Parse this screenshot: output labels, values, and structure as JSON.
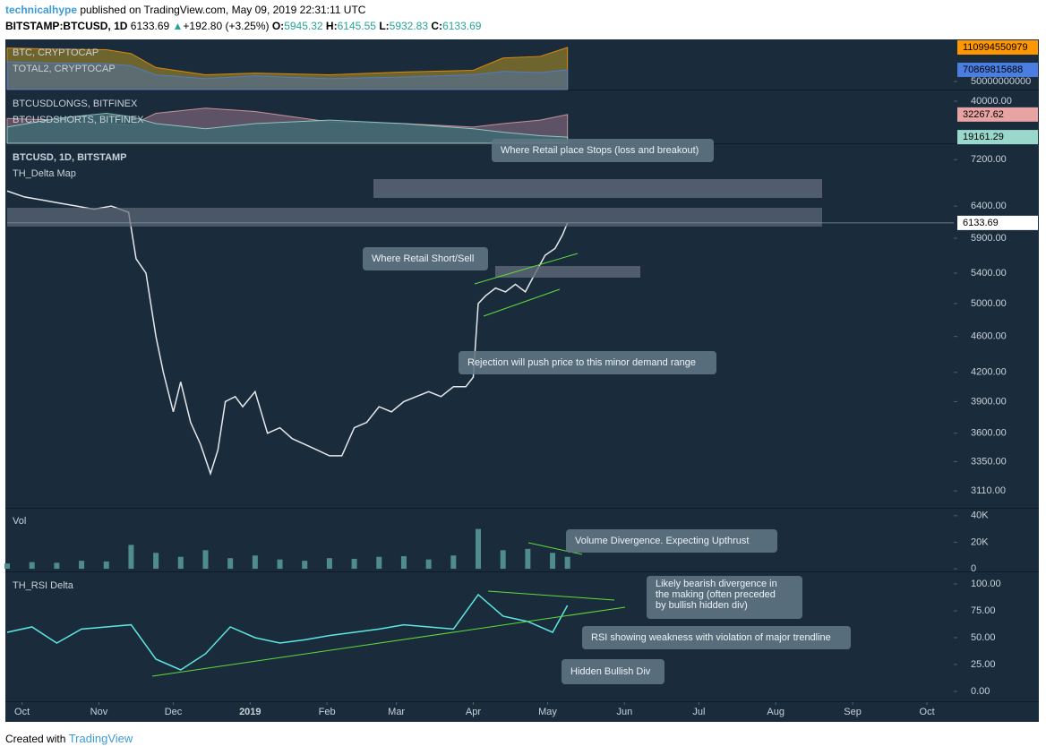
{
  "header": {
    "author": "technicalhype",
    "published": "published on TradingView.com, May 09, 2019 22:31:11 UTC",
    "symbol": "BITSTAMP:BTCUSD, 1D",
    "last": "6133.69",
    "arrow": "▲",
    "change": "+192.80 (+3.25%)",
    "open_label": "O:",
    "open": "5945.32",
    "high_label": "H:",
    "high": "6145.55",
    "low_label": "L:",
    "low": "5932.83",
    "close_label": "C:",
    "close": "6133.69"
  },
  "chart_data": [
    {
      "type": "area",
      "x": [
        0,
        20,
        40,
        50,
        60,
        80,
        100,
        130,
        160,
        188,
        200,
        215,
        226
      ],
      "ylim": [
        35500000000,
        123800000000
      ],
      "yticks": [
        50000000000
      ],
      "series": [
        {
          "name": "BTC, CRYPTOCAP",
          "color": "#ff9800",
          "fill": "#7d6f2c",
          "values": [
            110000000000,
            108000000000,
            107000000000,
            100000000000,
            75000000000,
            62000000000,
            65000000000,
            62000000000,
            67000000000,
            70000000000,
            92000000000,
            95000000000,
            110994550979
          ]
        },
        {
          "name": "TOTAL2, CRYPTOCAP",
          "color": "#4a7ee0",
          "fill": "#5a6e7c",
          "values": [
            85000000000,
            83000000000,
            82000000000,
            78000000000,
            62000000000,
            55000000000,
            60000000000,
            55000000000,
            58000000000,
            62000000000,
            68000000000,
            66000000000,
            70869815688
          ]
        }
      ]
    },
    {
      "type": "area",
      "x": [
        0,
        20,
        40,
        50,
        60,
        80,
        100,
        130,
        160,
        188,
        200,
        215,
        226
      ],
      "ylim": [
        15560,
        45720
      ],
      "yticks": [
        {
          "value": 40000,
          "label": "40000.00"
        }
      ],
      "series": [
        {
          "name": "BTCUSDLONGS, BITFINEX",
          "color": "#e8a3a3",
          "fill": "#6a5a6e",
          "values": [
            30000,
            29000,
            27000,
            26000,
            33000,
            36000,
            34000,
            28000,
            27000,
            25000,
            27000,
            29000,
            32267.62
          ]
        },
        {
          "name": "BTCUSDSHORTS, BITFINEX",
          "color": "#9ad8cc",
          "fill": "#3f6a72",
          "values": [
            25000,
            30000,
            33000,
            31000,
            27000,
            24000,
            27000,
            29000,
            27000,
            24000,
            22000,
            20000,
            19161.29
          ]
        }
      ]
    },
    {
      "type": "line",
      "title": "TH_Delta Map",
      "log_scale": true,
      "xlim": [
        0,
        380
      ],
      "xticks": [
        {
          "value": 6,
          "label": "Oct"
        },
        {
          "value": 37,
          "label": "Nov"
        },
        {
          "value": 67,
          "label": "Dec"
        },
        {
          "value": 98,
          "label": "2019"
        },
        {
          "value": 129,
          "label": "Feb"
        },
        {
          "value": 157,
          "label": "Mar"
        },
        {
          "value": 188,
          "label": "Apr"
        },
        {
          "value": 218,
          "label": "May"
        },
        {
          "value": 249,
          "label": "Jun"
        },
        {
          "value": 279,
          "label": "Jul"
        },
        {
          "value": 310,
          "label": "Aug"
        },
        {
          "value": 341,
          "label": "Sep"
        },
        {
          "value": 371,
          "label": "Oct"
        }
      ],
      "ylim": [
        2980,
        7470
      ],
      "yticks": [
        {
          "value": 7200,
          "label": "7200.00"
        },
        {
          "value": 6400,
          "label": "6400.00"
        },
        {
          "value": 5900,
          "label": "5900.00"
        },
        {
          "value": 5400,
          "label": "5400.00"
        },
        {
          "value": 5000,
          "label": "5000.00"
        },
        {
          "value": 4600,
          "label": "4600.00"
        },
        {
          "value": 4200,
          "label": "4200.00"
        },
        {
          "value": 3900,
          "label": "3900.00"
        },
        {
          "value": 3600,
          "label": "3600.00"
        },
        {
          "value": 3350,
          "label": "3350.00"
        },
        {
          "value": 3110,
          "label": "3110.00"
        }
      ],
      "x": [
        0,
        7,
        14,
        21,
        28,
        35,
        42,
        49,
        52,
        56,
        60,
        63,
        67,
        70,
        74,
        78,
        82,
        85,
        88,
        92,
        95,
        100,
        105,
        110,
        115,
        120,
        125,
        130,
        135,
        140,
        145,
        150,
        155,
        160,
        165,
        170,
        175,
        180,
        185,
        188,
        190,
        193,
        197,
        201,
        205,
        209,
        213,
        217,
        221,
        224,
        226
      ],
      "series": [
        {
          "name": "BTCUSD, 1D, BITSTAMP",
          "color": "#e6e8eb",
          "values": [
            6650,
            6550,
            6500,
            6450,
            6400,
            6350,
            6400,
            6300,
            5600,
            5400,
            4600,
            4200,
            3800,
            4100,
            3700,
            3500,
            3250,
            3450,
            3900,
            3950,
            3850,
            4000,
            3600,
            3650,
            3550,
            3500,
            3450,
            3400,
            3400,
            3650,
            3700,
            3850,
            3800,
            3900,
            3950,
            4000,
            3950,
            4050,
            4050,
            4150,
            5000,
            5100,
            5200,
            5150,
            5250,
            5150,
            5400,
            5650,
            5750,
            5950,
            6133.69
          ]
        }
      ]
    },
    {
      "type": "bar",
      "title": "Vol",
      "x": [
        0,
        10,
        20,
        30,
        40,
        50,
        60,
        70,
        80,
        90,
        100,
        110,
        120,
        130,
        140,
        150,
        160,
        170,
        180,
        190,
        200,
        210,
        220,
        226
      ],
      "ylim": [
        -2000,
        45300
      ],
      "yticks": [
        {
          "value": 40000,
          "label": "40K"
        },
        {
          "value": 20000,
          "label": "20K"
        },
        0
      ],
      "series": [
        {
          "color": "#4f8c8c",
          "values": [
            4000,
            5000,
            4500,
            6000,
            5500,
            18000,
            12000,
            9000,
            14000,
            8000,
            10000,
            7000,
            6000,
            8000,
            7500,
            9000,
            9500,
            7000,
            10000,
            30000,
            14000,
            15000,
            12000,
            9000
          ]
        }
      ]
    },
    {
      "type": "line",
      "title": "TH_RSI Delta",
      "x": [
        0,
        10,
        20,
        30,
        40,
        50,
        60,
        70,
        80,
        90,
        100,
        110,
        120,
        130,
        140,
        150,
        160,
        170,
        180,
        190,
        200,
        210,
        220,
        226
      ],
      "ylim": [
        -9.2,
        110
      ],
      "yticks": [
        {
          "value": 100,
          "label": "100.00"
        },
        {
          "value": 75,
          "label": "75.00"
        },
        {
          "value": 50,
          "label": "50.00"
        },
        {
          "value": 25,
          "label": "25.00"
        },
        {
          "value": 0,
          "label": "0.00"
        }
      ],
      "series": [
        {
          "color": "#5ee6e0",
          "values": [
            55,
            60,
            45,
            58,
            60,
            62,
            30,
            20,
            35,
            60,
            50,
            45,
            48,
            52,
            55,
            58,
            62,
            60,
            58,
            90,
            70,
            65,
            55,
            80
          ]
        }
      ]
    }
  ],
  "annotations": [
    {
      "lines": [
        "Where Retail place Stops (loss and breakout)"
      ]
    },
    {
      "lines": [
        "Where Retail Short/Sell"
      ]
    },
    {
      "lines": [
        "Rejection will push price to this minor demand range"
      ]
    },
    {
      "lines": [
        "Volume Divergence. Expecting Upthrust"
      ]
    },
    {
      "lines": [
        "Likely bearish divergence in",
        "the making (often preceded",
        "by bullish hidden div)"
      ]
    },
    {
      "lines": [
        "RSI showing weakness with violation of major trendline"
      ]
    },
    {
      "lines": [
        "Hidden Bullish Div"
      ]
    }
  ],
  "footer": {
    "created": "Created with",
    "brand": "TradingView"
  }
}
